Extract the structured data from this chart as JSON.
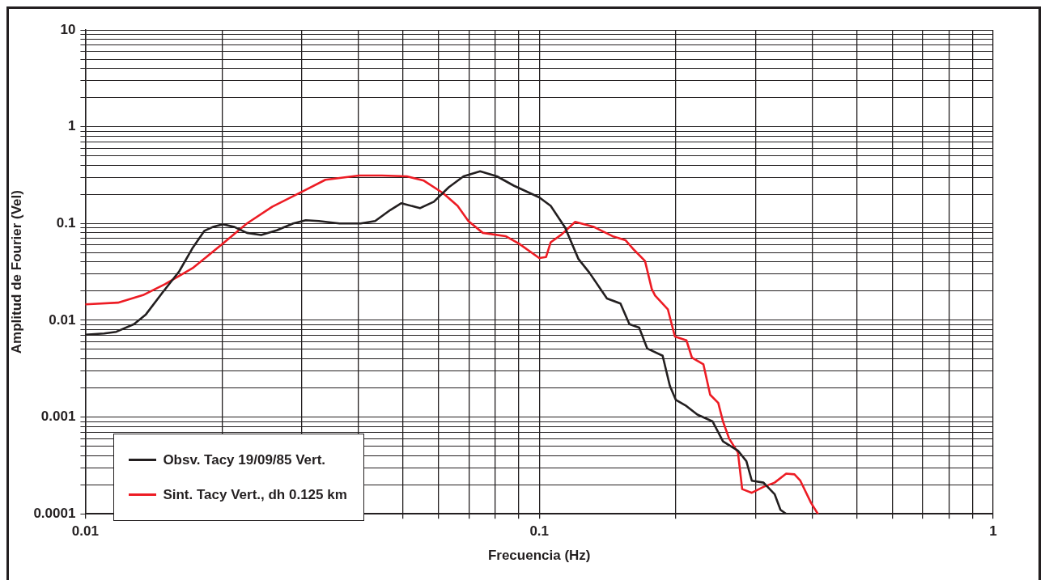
{
  "chart_data": {
    "type": "line",
    "xlabel": "Frecuencia (Hz)",
    "ylabel": "Amplitud de Fourier (Vel)",
    "log": "xy",
    "grid": true,
    "legend": "bottom left",
    "marker": "none",
    "line_style": "solid",
    "xlim": [
      0.01,
      1
    ],
    "xticks": [
      0.01,
      {
        "value": 0.02,
        "label": null
      },
      {
        "value": 0.03,
        "label": null
      },
      {
        "value": 0.04,
        "label": null
      },
      {
        "value": 0.05,
        "label": null
      },
      {
        "value": 0.06,
        "label": null
      },
      {
        "value": 0.07,
        "label": null
      },
      {
        "value": 0.08,
        "label": null
      },
      {
        "value": 0.09,
        "label": null
      },
      0.1,
      {
        "value": 0.2,
        "label": null
      },
      {
        "value": 0.3,
        "label": null
      },
      {
        "value": 0.4,
        "label": null
      },
      {
        "value": 0.5,
        "label": null
      },
      {
        "value": 0.6,
        "label": null
      },
      {
        "value": 0.7,
        "label": null
      },
      {
        "value": 0.8,
        "label": null
      },
      {
        "value": 0.9,
        "label": null
      },
      1
    ],
    "ylim": [
      0.0001,
      10
    ],
    "yticks": [
      0.0001,
      {
        "value": 0.0002,
        "label": null
      },
      {
        "value": 0.0003,
        "label": null
      },
      {
        "value": 0.0004,
        "label": null
      },
      {
        "value": 0.0005,
        "label": null
      },
      {
        "value": 0.0006,
        "label": null
      },
      {
        "value": 0.0007,
        "label": null
      },
      {
        "value": 0.0008,
        "label": null
      },
      {
        "value": 0.0009,
        "label": null
      },
      0.001,
      {
        "value": 0.002,
        "label": null
      },
      {
        "value": 0.003,
        "label": null
      },
      {
        "value": 0.004,
        "label": null
      },
      {
        "value": 0.005,
        "label": null
      },
      {
        "value": 0.006,
        "label": null
      },
      {
        "value": 0.007,
        "label": null
      },
      {
        "value": 0.008,
        "label": null
      },
      {
        "value": 0.009,
        "label": null
      },
      0.01,
      {
        "value": 0.02,
        "label": null
      },
      {
        "value": 0.03,
        "label": null
      },
      {
        "value": 0.04,
        "label": null
      },
      {
        "value": 0.05,
        "label": null
      },
      {
        "value": 0.06,
        "label": null
      },
      {
        "value": 0.07,
        "label": null
      },
      {
        "value": 0.08,
        "label": null
      },
      {
        "value": 0.09,
        "label": null
      },
      0.1,
      {
        "value": 0.2,
        "label": null
      },
      {
        "value": 0.3,
        "label": null
      },
      {
        "value": 0.4,
        "label": null
      },
      {
        "value": 0.5,
        "label": null
      },
      {
        "value": 0.6,
        "label": null
      },
      {
        "value": 0.7,
        "label": null
      },
      {
        "value": 0.8,
        "label": null
      },
      {
        "value": 0.9,
        "label": null
      },
      1,
      {
        "value": 2,
        "label": null
      },
      {
        "value": 3,
        "label": null
      },
      {
        "value": 4,
        "label": null
      },
      {
        "value": 5,
        "label": null
      },
      {
        "value": 6,
        "label": null
      },
      {
        "value": 7,
        "label": null
      },
      {
        "value": 8,
        "label": null
      },
      {
        "value": 9,
        "label": null
      },
      10
    ],
    "series": [
      {
        "name": "Obsv. Tacy 19/09/85 Vert.",
        "color": "#231f20",
        "x": [
          0.01,
          0.011,
          0.0117,
          0.0128,
          0.0136,
          0.0148,
          0.0161,
          0.0172,
          0.0183,
          0.0191,
          0.0201,
          0.0213,
          0.0227,
          0.0244,
          0.0264,
          0.0287,
          0.0306,
          0.0327,
          0.0363,
          0.0404,
          0.0435,
          0.047,
          0.0497,
          0.0546,
          0.0586,
          0.0632,
          0.0681,
          0.0741,
          0.0807,
          0.0879,
          0.1,
          0.106,
          0.114,
          0.122,
          0.129,
          0.141,
          0.151,
          0.158,
          0.166,
          0.173,
          0.187,
          0.194,
          0.2,
          0.211,
          0.223,
          0.241,
          0.254,
          0.274,
          0.286,
          0.294,
          0.312,
          0.33,
          0.34,
          0.35
        ],
        "values": [
          0.0071,
          0.0073,
          0.0076,
          0.0091,
          0.0115,
          0.0194,
          0.032,
          0.055,
          0.084,
          0.092,
          0.098,
          0.092,
          0.08,
          0.076,
          0.085,
          0.1,
          0.108,
          0.106,
          0.1,
          0.1,
          0.106,
          0.138,
          0.162,
          0.144,
          0.168,
          0.237,
          0.307,
          0.346,
          0.307,
          0.246,
          0.186,
          0.152,
          0.091,
          0.043,
          0.031,
          0.0168,
          0.0149,
          0.0091,
          0.0084,
          0.0051,
          0.0043,
          0.0021,
          0.0015,
          0.0013,
          0.00106,
          0.0009,
          0.00056,
          0.00045,
          0.00035,
          0.00022,
          0.00021,
          0.00016,
          0.00011,
          0.0001
        ]
      },
      {
        "name": "Sint. Tacy Vert., dh 0.125 km",
        "color": "#ed1c24",
        "x": [
          0.01,
          0.0118,
          0.0134,
          0.015,
          0.0173,
          0.02,
          0.0227,
          0.0258,
          0.0303,
          0.0338,
          0.0401,
          0.045,
          0.0511,
          0.0557,
          0.0614,
          0.0661,
          0.0698,
          0.0751,
          0.0843,
          0.0902,
          0.1,
          0.1035,
          0.106,
          0.112,
          0.12,
          0.132,
          0.145,
          0.155,
          0.162,
          0.171,
          0.177,
          0.18,
          0.192,
          0.199,
          0.211,
          0.217,
          0.23,
          0.238,
          0.248,
          0.254,
          0.262,
          0.274,
          0.28,
          0.294,
          0.312,
          0.33,
          0.35,
          0.365,
          0.376,
          0.397,
          0.411
        ],
        "values": [
          0.0146,
          0.0152,
          0.0182,
          0.0237,
          0.035,
          0.061,
          0.1,
          0.149,
          0.218,
          0.283,
          0.313,
          0.313,
          0.307,
          0.277,
          0.206,
          0.152,
          0.106,
          0.08,
          0.074,
          0.062,
          0.044,
          0.045,
          0.064,
          0.077,
          0.104,
          0.092,
          0.074,
          0.067,
          0.053,
          0.041,
          0.021,
          0.018,
          0.013,
          0.0068,
          0.0062,
          0.0041,
          0.0035,
          0.0017,
          0.0014,
          0.0009,
          0.0006,
          0.00043,
          0.00018,
          0.000165,
          0.00019,
          0.00021,
          0.00026,
          0.000256,
          0.00022,
          0.00013,
          0.0001
        ]
      }
    ]
  }
}
